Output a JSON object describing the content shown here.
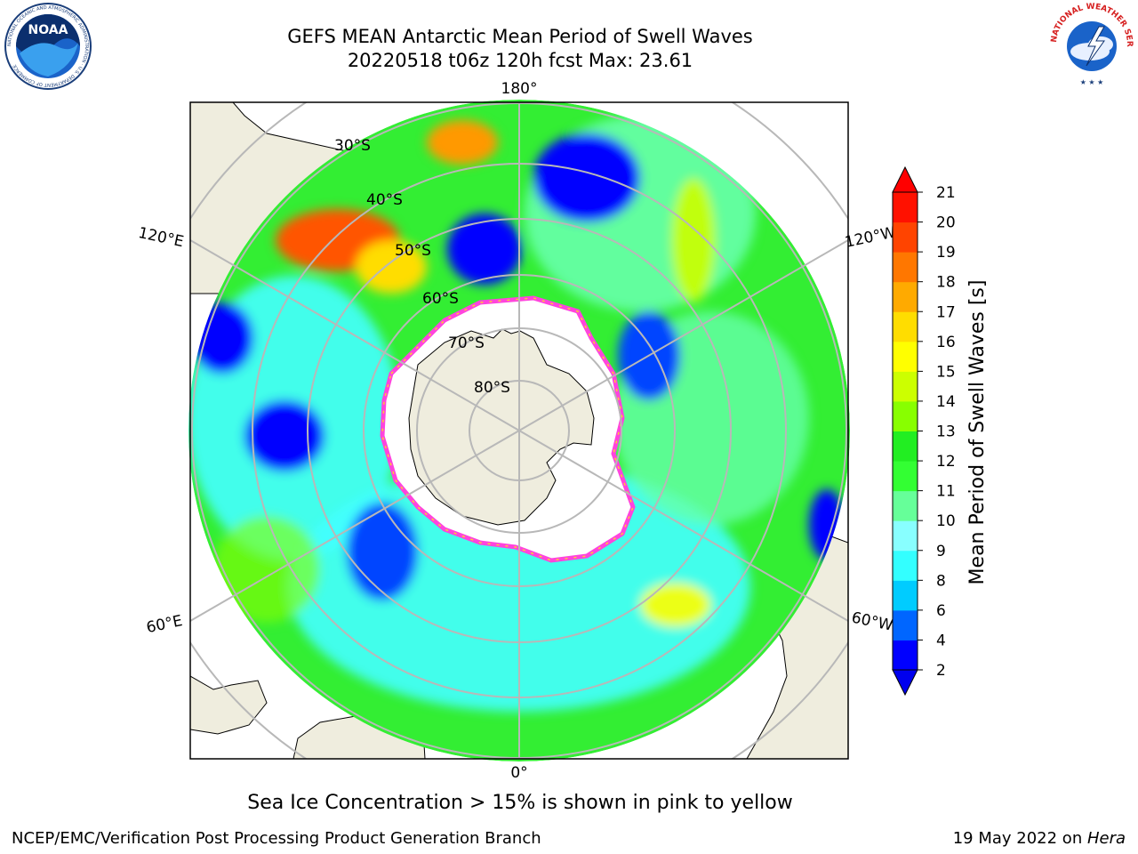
{
  "header": {
    "title_line1": "GEFS MEAN Antarctic Mean Period of Swell Waves",
    "title_line2": "20220518 t06z 120h fcst   Max: 23.61"
  },
  "logos": {
    "noaa_text": "NOAA",
    "noaa_ring_text": "NATIONAL OCEANIC AND ATMOSPHERIC ADMINISTRATION · U.S. DEPARTMENT OF COMMERCE",
    "nws_ring_text": "NATIONAL WEATHER SERVICE"
  },
  "map": {
    "projection": "south-polar-stereographic",
    "latitude_labels": [
      "30°S",
      "40°S",
      "50°S",
      "60°S",
      "70°S",
      "80°S"
    ],
    "longitude_labels": {
      "top": "180°",
      "bottom": "0°",
      "left_upper": "120°E",
      "left_lower": "60°E",
      "right_upper": "120°W",
      "right_lower": "60°W"
    },
    "sea_ice_colors": [
      "#ff44dd",
      "#ffcc33"
    ]
  },
  "colorbar": {
    "label": "Mean Period of Swell Waves [s]",
    "levels": [
      2,
      4,
      6,
      8,
      9,
      10,
      11,
      12,
      13,
      14,
      15,
      16,
      17,
      18,
      19,
      20,
      21
    ],
    "colors": [
      "#0000ff",
      "#0066ff",
      "#00ccff",
      "#33ffff",
      "#88ffff",
      "#66ff99",
      "#33ff33",
      "#22ee22",
      "#88ff00",
      "#ccff00",
      "#ffff00",
      "#ffdd00",
      "#ffaa00",
      "#ff7700",
      "#ff4400",
      "#ff1100"
    ],
    "under_color": "#0000ee",
    "over_color": "#ff0000"
  },
  "caption": "Sea Ice Concentration > 15% is shown in pink to yellow",
  "footer": {
    "left": "NCEP/EMC/Verification Post Processing Product Generation Branch",
    "right_date": "19 May 2022 on ",
    "right_machine": "Hera"
  }
}
